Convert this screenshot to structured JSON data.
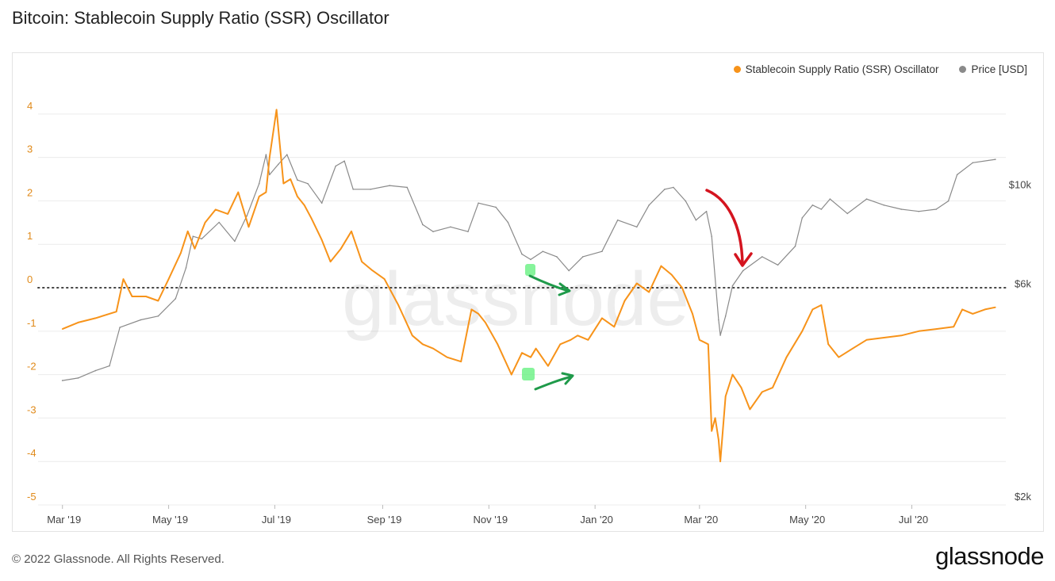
{
  "page": {
    "title": "Bitcoin: Stablecoin Supply Ratio (SSR) Oscillator",
    "footer": "© 2022 Glassnode. All Rights Reserved.",
    "brand": "glassnode",
    "watermark": "glassnode"
  },
  "colors": {
    "ssr": "#f7931a",
    "price": "#8a8a8a",
    "grid": "#ececec",
    "zero_line": "#444444",
    "left_axis_text": "#e08a1a",
    "annotation_green": "#1f9a4a",
    "annotation_highlight": "#5ef07a",
    "annotation_red": "#d4141f"
  },
  "chart_data": {
    "type": "line",
    "title": "Bitcoin: Stablecoin Supply Ratio (SSR) Oscillator",
    "legend_placement": "top-right",
    "grid": true,
    "x_ticks": [
      "Mar '19",
      "May '19",
      "Jul '19",
      "Sep '19",
      "Nov '19",
      "Jan '20",
      "Mar '20",
      "May '20",
      "Jul '20"
    ],
    "y_left": {
      "ticks": [
        -5,
        -4,
        -3,
        -2,
        -1,
        0,
        1,
        2,
        3,
        4
      ],
      "ylim": [
        -5,
        4.8
      ]
    },
    "y_right": {
      "scale": "log",
      "tick_labels": [
        "$2k",
        "$6k",
        "$10k"
      ],
      "tick_values": [
        2000,
        6000,
        10000
      ],
      "ylim": [
        2000,
        18000
      ]
    },
    "series": [
      {
        "name": "Stablecoin Supply Ratio (SSR) Oscillator",
        "axis": "left",
        "x": [
          "2019-03-01",
          "2019-03-10",
          "2019-03-20",
          "2019-04-01",
          "2019-04-05",
          "2019-04-10",
          "2019-04-18",
          "2019-04-25",
          "2019-05-01",
          "2019-05-08",
          "2019-05-12",
          "2019-05-16",
          "2019-05-22",
          "2019-05-28",
          "2019-06-04",
          "2019-06-10",
          "2019-06-16",
          "2019-06-22",
          "2019-06-26",
          "2019-06-28",
          "2019-07-02",
          "2019-07-06",
          "2019-07-10",
          "2019-07-14",
          "2019-07-18",
          "2019-07-22",
          "2019-07-28",
          "2019-08-02",
          "2019-08-08",
          "2019-08-14",
          "2019-08-20",
          "2019-08-26",
          "2019-09-02",
          "2019-09-10",
          "2019-09-18",
          "2019-09-24",
          "2019-09-30",
          "2019-10-08",
          "2019-10-16",
          "2019-10-22",
          "2019-10-26",
          "2019-10-30",
          "2019-11-06",
          "2019-11-14",
          "2019-11-20",
          "2019-11-25",
          "2019-11-28",
          "2019-12-05",
          "2019-12-12",
          "2019-12-18",
          "2019-12-22",
          "2019-12-28",
          "2020-01-05",
          "2020-01-12",
          "2020-01-18",
          "2020-01-25",
          "2020-02-01",
          "2020-02-08",
          "2020-02-14",
          "2020-02-20",
          "2020-02-26",
          "2020-03-01",
          "2020-03-06",
          "2020-03-08",
          "2020-03-10",
          "2020-03-12",
          "2020-03-13",
          "2020-03-16",
          "2020-03-20",
          "2020-03-25",
          "2020-03-30",
          "2020-04-06",
          "2020-04-12",
          "2020-04-20",
          "2020-04-29",
          "2020-05-05",
          "2020-05-10",
          "2020-05-14",
          "2020-05-20",
          "2020-05-28",
          "2020-06-05",
          "2020-06-15",
          "2020-06-25",
          "2020-07-05",
          "2020-07-15",
          "2020-07-25",
          "2020-07-30",
          "2020-08-05",
          "2020-08-12",
          "2020-08-18"
        ],
        "values": [
          -0.95,
          -0.8,
          -0.7,
          -0.55,
          0.2,
          -0.2,
          -0.2,
          -0.3,
          0.2,
          0.8,
          1.3,
          0.9,
          1.5,
          1.8,
          1.7,
          2.2,
          1.4,
          2.1,
          2.2,
          3.0,
          4.1,
          2.4,
          2.5,
          2.1,
          1.9,
          1.6,
          1.1,
          0.6,
          0.9,
          1.3,
          0.6,
          0.4,
          0.2,
          -0.4,
          -1.1,
          -1.3,
          -1.4,
          -1.6,
          -1.7,
          -0.5,
          -0.6,
          -0.8,
          -1.3,
          -2.0,
          -1.5,
          -1.6,
          -1.4,
          -1.8,
          -1.3,
          -1.2,
          -1.1,
          -1.2,
          -0.7,
          -0.9,
          -0.3,
          0.1,
          -0.1,
          0.5,
          0.3,
          0.0,
          -0.6,
          -1.2,
          -1.3,
          -3.3,
          -3.0,
          -3.5,
          -4.0,
          -2.5,
          -2.0,
          -2.3,
          -2.8,
          -2.4,
          -2.3,
          -1.6,
          -1.0,
          -0.5,
          -0.4,
          -1.3,
          -1.6,
          -1.4,
          -1.2,
          -1.15,
          -1.1,
          -1.0,
          -0.95,
          -0.9,
          -0.5,
          -0.6,
          -0.5,
          -0.45
        ]
      },
      {
        "name": "Price [USD]",
        "axis": "right",
        "x": [
          "2019-03-01",
          "2019-03-10",
          "2019-03-20",
          "2019-03-28",
          "2019-04-03",
          "2019-04-15",
          "2019-04-25",
          "2019-05-05",
          "2019-05-11",
          "2019-05-15",
          "2019-05-20",
          "2019-05-30",
          "2019-06-08",
          "2019-06-15",
          "2019-06-22",
          "2019-06-26",
          "2019-06-28",
          "2019-07-03",
          "2019-07-08",
          "2019-07-14",
          "2019-07-20",
          "2019-07-28",
          "2019-08-05",
          "2019-08-10",
          "2019-08-15",
          "2019-08-25",
          "2019-09-05",
          "2019-09-15",
          "2019-09-24",
          "2019-09-30",
          "2019-10-10",
          "2019-10-20",
          "2019-10-26",
          "2019-11-05",
          "2019-11-12",
          "2019-11-20",
          "2019-11-25",
          "2019-12-02",
          "2019-12-10",
          "2019-12-17",
          "2019-12-25",
          "2020-01-05",
          "2020-01-14",
          "2020-01-25",
          "2020-02-01",
          "2020-02-10",
          "2020-02-15",
          "2020-02-22",
          "2020-02-28",
          "2020-03-05",
          "2020-03-08",
          "2020-03-12",
          "2020-03-13",
          "2020-03-16",
          "2020-03-20",
          "2020-03-26",
          "2020-04-06",
          "2020-04-15",
          "2020-04-25",
          "2020-04-29",
          "2020-05-05",
          "2020-05-10",
          "2020-05-15",
          "2020-05-25",
          "2020-06-05",
          "2020-06-15",
          "2020-06-25",
          "2020-07-05",
          "2020-07-15",
          "2020-07-22",
          "2020-07-27",
          "2020-08-05",
          "2020-08-18"
        ],
        "values": [
          3800,
          3850,
          4000,
          4100,
          5000,
          5200,
          5300,
          5800,
          6800,
          8000,
          7900,
          8600,
          7800,
          8900,
          10500,
          12200,
          11000,
          11600,
          12200,
          10700,
          10500,
          9500,
          11500,
          11800,
          10200,
          10200,
          10400,
          10300,
          8500,
          8200,
          8400,
          8200,
          9500,
          9300,
          8600,
          7300,
          7100,
          7400,
          7200,
          6700,
          7200,
          7400,
          8700,
          8400,
          9400,
          10200,
          10300,
          9600,
          8700,
          9100,
          8000,
          5200,
          4800,
          5300,
          6200,
          6700,
          7200,
          6900,
          7600,
          8800,
          9400,
          9200,
          9700,
          9000,
          9700,
          9400,
          9200,
          9100,
          9200,
          9600,
          11000,
          11700,
          11900
        ]
      }
    ],
    "annotations": [
      {
        "type": "arrow",
        "color": "red",
        "date": "2020-03-12"
      },
      {
        "type": "arrow",
        "color": "green",
        "date": "2019-11-25"
      },
      {
        "type": "arrow",
        "color": "green",
        "date": "2019-11-25"
      }
    ]
  }
}
